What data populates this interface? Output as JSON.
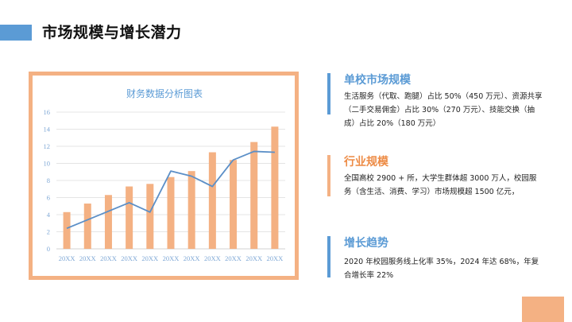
{
  "page": {
    "title": "市场规模与增长潜力",
    "accent_colors": {
      "blue": "#5b9bd5",
      "orange": "#f4b183",
      "orange_text": "#ed8b45"
    }
  },
  "sections": [
    {
      "heading": "单校市场规模",
      "body": "生活服务（代取、跑腿）占比 50%（450 万元）、资源共享（二手交易佣金）占比 30%（270 万元）、技能交换（抽成）占比 20%（180 万元）"
    },
    {
      "heading": "行业规模",
      "body": "全国高校 2900 + 所，大学生群体超 3000 万人，校园服务（含生活、消费、学习）市场规模超 1500 亿元，"
    },
    {
      "heading": "增长趋势",
      "body": "2020 年校园服务线上化率 35%，2024 年达 68%，年复合增长率 22%"
    }
  ],
  "chart_data": {
    "type": "bar",
    "title": "财务数据分析图表",
    "xlabel": "",
    "ylabel": "",
    "ylim": [
      0,
      16
    ],
    "yticks": [
      0,
      2,
      4,
      6,
      8,
      10,
      12,
      14,
      16
    ],
    "grid": true,
    "legend": "none",
    "categories": [
      "20XX",
      "20XX",
      "20XX",
      "20XX",
      "20XX",
      "20XX",
      "20XX",
      "20XX",
      "20XX",
      "20XX",
      "20XX"
    ],
    "series": [
      {
        "name": "bars",
        "type": "bar",
        "color": "#f4b183",
        "values": [
          4.3,
          5.3,
          6.3,
          7.3,
          7.6,
          8.4,
          9.1,
          11.3,
          10.4,
          12.5,
          14.3
        ]
      },
      {
        "name": "line",
        "type": "line",
        "color": "#5b8fc7",
        "values": [
          2.4,
          3.4,
          4.4,
          5.4,
          4.3,
          9.1,
          8.5,
          7.3,
          10.4,
          11.4,
          11.3
        ]
      }
    ]
  }
}
